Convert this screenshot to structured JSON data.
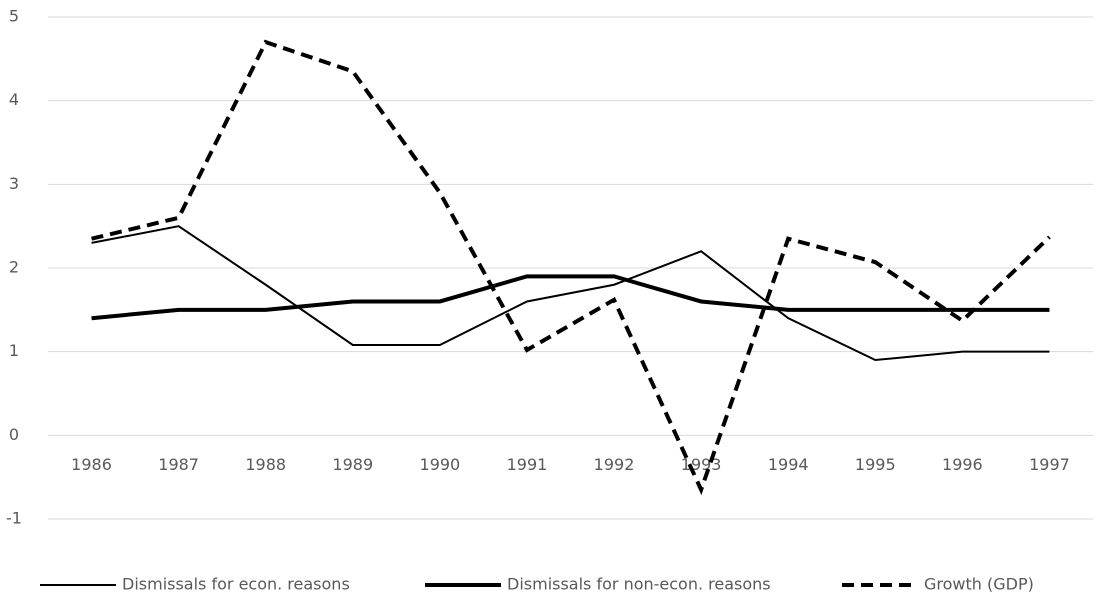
{
  "chart_data": {
    "type": "line",
    "categories": [
      "1986",
      "1987",
      "1988",
      "1989",
      "1990",
      "1991",
      "1992",
      "1993",
      "1994",
      "1995",
      "1996",
      "1997"
    ],
    "series": [
      {
        "name": "Dismissals for econ. reasons",
        "color": "#000000",
        "width": 2,
        "dashed": false,
        "values": [
          2.3,
          2.5,
          1.8,
          1.08,
          1.08,
          1.6,
          1.8,
          2.2,
          1.4,
          0.9,
          1.0,
          1.0
        ]
      },
      {
        "name": "Dismissals for non-econ. reasons",
        "color": "#000000",
        "width": 4,
        "dashed": false,
        "values": [
          1.4,
          1.5,
          1.5,
          1.6,
          1.6,
          1.9,
          1.9,
          1.6,
          1.5,
          1.5,
          1.5,
          1.5
        ]
      },
      {
        "name": "Growth (GDP)",
        "color": "#000000",
        "width": 4,
        "dashed": true,
        "values": [
          2.35,
          2.6,
          4.7,
          4.35,
          2.9,
          1.02,
          1.62,
          -0.65,
          2.35,
          2.07,
          1.37,
          2.37
        ]
      }
    ],
    "ylim": [
      -1,
      5
    ],
    "yticks": [
      -1,
      0,
      1,
      2,
      3,
      4,
      5
    ],
    "grid": true,
    "legend": "bottom"
  }
}
